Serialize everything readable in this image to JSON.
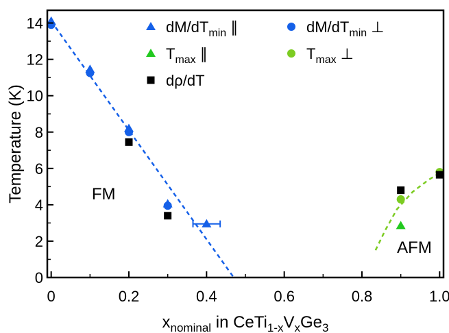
{
  "chart_data": {
    "type": "scatter",
    "xlabel": {
      "main": "x",
      "sub": "nominal",
      "rest": " in CeTi",
      "sub2": "1-x",
      "mid": "V",
      "sub3": "x",
      "end": "Ge",
      "sub4": "3"
    },
    "ylabel": "Temperature (K)",
    "xlim": [
      -0.01,
      1.01
    ],
    "ylim": [
      0,
      14.7
    ],
    "xticks": [
      0,
      0.2,
      0.4,
      0.6,
      0.8,
      1.0
    ],
    "xtick_labels": [
      "0",
      "0.2",
      "0.4",
      "0.6",
      "0.8",
      "1.0"
    ],
    "yticks": [
      0,
      2,
      4,
      6,
      8,
      10,
      12,
      14
    ],
    "ytick_labels": [
      "0",
      "2",
      "4",
      "6",
      "8",
      "10",
      "12",
      "14"
    ],
    "grid": false,
    "legend_position": "top",
    "series": [
      {
        "key": "dmdt_par",
        "label_main": "dM/dT",
        "label_sub": "min",
        "label_end": " ∥",
        "marker": "triangle",
        "color": "#1560e8",
        "points": [
          [
            0,
            14.1
          ],
          [
            0.1,
            11.45
          ],
          [
            0.2,
            8.2
          ],
          [
            0.3,
            4.05
          ],
          [
            0.4,
            2.95
          ]
        ],
        "xerr": [
          0,
          0,
          0,
          0,
          0.035
        ]
      },
      {
        "key": "dmdt_perp",
        "label_main": "dM/dT",
        "label_sub": "min",
        "label_end": " ⊥",
        "marker": "circle",
        "color": "#1560e8",
        "points": [
          [
            0,
            13.9
          ],
          [
            0.1,
            11.25
          ],
          [
            0.2,
            8.0
          ],
          [
            0.3,
            3.95
          ]
        ]
      },
      {
        "key": "tmax_par",
        "label_main": "T",
        "label_sub": "max",
        "label_end": " ∥",
        "marker": "triangle",
        "color": "#22c91f",
        "points": [
          [
            0.9,
            2.85
          ]
        ]
      },
      {
        "key": "tmax_perp",
        "label_main": "T",
        "label_sub": "max",
        "label_end": " ⊥",
        "marker": "circle",
        "color": "#7ccc22",
        "points": [
          [
            0.9,
            4.3
          ],
          [
            1.0,
            5.8
          ]
        ]
      },
      {
        "key": "drho",
        "label_main": "dρ/dT",
        "label_sub": "",
        "label_end": "",
        "marker": "square",
        "color": "#000000",
        "points": [
          [
            0.2,
            7.45
          ],
          [
            0.3,
            3.4
          ],
          [
            0.9,
            4.8
          ],
          [
            1.0,
            5.65
          ]
        ]
      }
    ],
    "fit_lines": [
      {
        "key": "fm_line",
        "color": "#1560e8",
        "points": [
          [
            0,
            14.1
          ],
          [
            0.47,
            0
          ]
        ]
      },
      {
        "key": "afm_line",
        "color": "#7ccc22",
        "points": [
          [
            0.835,
            1.5
          ],
          [
            0.86,
            2.6
          ],
          [
            0.89,
            3.75
          ],
          [
            0.93,
            4.7
          ],
          [
            0.97,
            5.35
          ],
          [
            1.0,
            5.75
          ]
        ]
      }
    ],
    "annotations": [
      {
        "text": "FM",
        "x": 0.135,
        "y": 4.3
      },
      {
        "text": "AFM",
        "x": 0.935,
        "y": 1.35
      }
    ]
  }
}
